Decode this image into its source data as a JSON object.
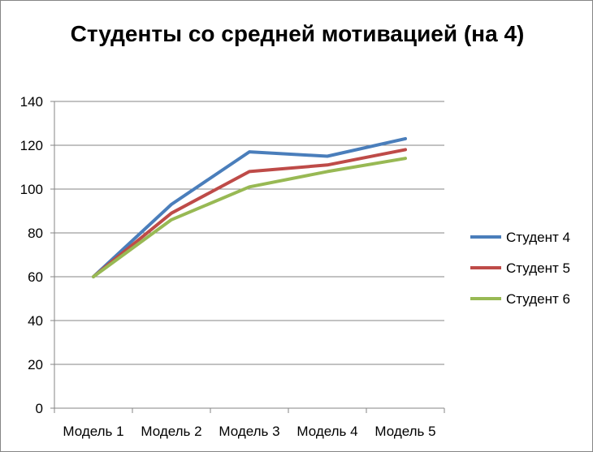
{
  "chart_data": {
    "type": "line",
    "title": "Студенты со средней мотивацией (на 4)",
    "categories": [
      "Модель 1",
      "Модель 2",
      "Модель 3",
      "Модель 4",
      "Модель 5"
    ],
    "series": [
      {
        "name": "Студент 4",
        "values": [
          60,
          93,
          117,
          115,
          123
        ],
        "color": "#4A7EBB"
      },
      {
        "name": "Студент 5",
        "values": [
          60,
          89,
          108,
          111,
          118
        ],
        "color": "#BE4B48"
      },
      {
        "name": "Студент 6",
        "values": [
          60,
          86,
          101,
          108,
          114
        ],
        "color": "#98B954"
      }
    ],
    "ylim": [
      0,
      140
    ],
    "yticks": [
      0,
      20,
      40,
      60,
      80,
      100,
      120,
      140
    ],
    "grid": true,
    "legend": "right"
  }
}
